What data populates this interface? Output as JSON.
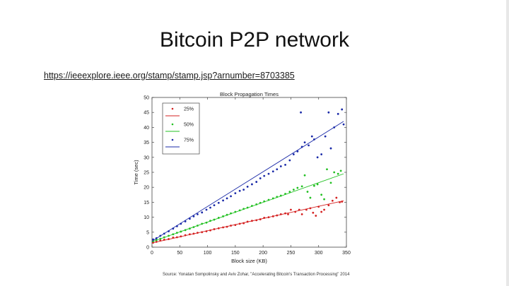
{
  "slide": {
    "title": "Bitcoin P2P network",
    "link": "https://ieeexplore.ieee.org/stamp/stamp.jsp?arnumber=8703385",
    "source": "Source: Yonatan Sompolinsky and Aviv Zohar, \"Accelerating Bitcoin's Transaction Processing\" 2014"
  },
  "chart_data": {
    "type": "scatter",
    "title": "Block Propagation Times",
    "xlabel": "Block size (KB)",
    "ylabel": "Time (sec)",
    "xlim": [
      0,
      350
    ],
    "ylim": [
      0,
      50
    ],
    "xticks": [
      0,
      50,
      100,
      150,
      200,
      250,
      300,
      350
    ],
    "yticks": [
      0,
      5,
      10,
      15,
      20,
      25,
      30,
      35,
      40,
      45,
      50
    ],
    "grid": false,
    "legend_position": "top-left",
    "series": [
      {
        "name": "25%",
        "color": "#d42020",
        "fit": [
          [
            0,
            1.4
          ],
          [
            345,
            15.5
          ]
        ],
        "points": [
          [
            2,
            1.5
          ],
          [
            8,
            1.8
          ],
          [
            15,
            2.2
          ],
          [
            22,
            2.5
          ],
          [
            30,
            2.7
          ],
          [
            38,
            3.2
          ],
          [
            45,
            3.3
          ],
          [
            52,
            3.6
          ],
          [
            60,
            4.0
          ],
          [
            68,
            4.3
          ],
          [
            75,
            4.5
          ],
          [
            82,
            4.8
          ],
          [
            90,
            5.0
          ],
          [
            98,
            5.3
          ],
          [
            105,
            5.6
          ],
          [
            112,
            6.0
          ],
          [
            120,
            6.3
          ],
          [
            128,
            6.6
          ],
          [
            135,
            6.8
          ],
          [
            142,
            7.2
          ],
          [
            150,
            7.4
          ],
          [
            158,
            7.8
          ],
          [
            165,
            8.0
          ],
          [
            172,
            8.5
          ],
          [
            180,
            8.8
          ],
          [
            188,
            9.0
          ],
          [
            195,
            9.3
          ],
          [
            202,
            9.8
          ],
          [
            210,
            10.0
          ],
          [
            218,
            10.3
          ],
          [
            225,
            10.6
          ],
          [
            232,
            11.0
          ],
          [
            240,
            11.3
          ],
          [
            245,
            11.0
          ],
          [
            250,
            12.5
          ],
          [
            258,
            11.8
          ],
          [
            265,
            12.5
          ],
          [
            270,
            11.0
          ],
          [
            278,
            12.5
          ],
          [
            285,
            13.0
          ],
          [
            290,
            11.5
          ],
          [
            295,
            10.5
          ],
          [
            300,
            13.5
          ],
          [
            305,
            11.8
          ],
          [
            310,
            12.5
          ],
          [
            318,
            14.0
          ],
          [
            325,
            15.5
          ],
          [
            332,
            16.5
          ],
          [
            338,
            15.0
          ],
          [
            342,
            15.2
          ]
        ]
      },
      {
        "name": "50%",
        "color": "#22c022",
        "fit": [
          [
            0,
            1.8
          ],
          [
            345,
            24.5
          ]
        ],
        "points": [
          [
            2,
            2.0
          ],
          [
            8,
            2.4
          ],
          [
            15,
            2.8
          ],
          [
            22,
            3.3
          ],
          [
            30,
            3.8
          ],
          [
            38,
            4.3
          ],
          [
            45,
            4.8
          ],
          [
            52,
            5.2
          ],
          [
            60,
            5.7
          ],
          [
            68,
            6.2
          ],
          [
            75,
            6.7
          ],
          [
            82,
            7.2
          ],
          [
            90,
            7.8
          ],
          [
            98,
            8.2
          ],
          [
            105,
            8.8
          ],
          [
            112,
            9.2
          ],
          [
            120,
            9.8
          ],
          [
            128,
            10.3
          ],
          [
            135,
            10.8
          ],
          [
            142,
            11.3
          ],
          [
            150,
            11.8
          ],
          [
            158,
            12.3
          ],
          [
            165,
            12.8
          ],
          [
            172,
            13.2
          ],
          [
            180,
            13.8
          ],
          [
            188,
            14.3
          ],
          [
            195,
            14.8
          ],
          [
            202,
            15.3
          ],
          [
            210,
            15.8
          ],
          [
            218,
            16.3
          ],
          [
            225,
            16.8
          ],
          [
            232,
            17.2
          ],
          [
            240,
            17.8
          ],
          [
            248,
            18.5
          ],
          [
            255,
            19.2
          ],
          [
            262,
            19.8
          ],
          [
            270,
            20.3
          ],
          [
            275,
            24.0
          ],
          [
            280,
            18.5
          ],
          [
            285,
            16.5
          ],
          [
            292,
            20.5
          ],
          [
            298,
            21.0
          ],
          [
            305,
            17.5
          ],
          [
            310,
            16.0
          ],
          [
            315,
            26.0
          ],
          [
            322,
            21.5
          ],
          [
            328,
            25.0
          ],
          [
            335,
            24.5
          ],
          [
            340,
            25.5
          ]
        ]
      },
      {
        "name": "75%",
        "color": "#1a2aa8",
        "fit": [
          [
            0,
            2.0
          ],
          [
            345,
            42.0
          ]
        ],
        "points": [
          [
            2,
            2.6
          ],
          [
            8,
            3.0
          ],
          [
            15,
            3.8
          ],
          [
            22,
            4.5
          ],
          [
            30,
            5.3
          ],
          [
            38,
            6.2
          ],
          [
            45,
            7.0
          ],
          [
            52,
            7.8
          ],
          [
            60,
            8.6
          ],
          [
            68,
            9.5
          ],
          [
            75,
            10.3
          ],
          [
            82,
            11.0
          ],
          [
            90,
            11.6
          ],
          [
            98,
            12.5
          ],
          [
            105,
            13.2
          ],
          [
            112,
            14.0
          ],
          [
            120,
            14.8
          ],
          [
            128,
            15.6
          ],
          [
            135,
            16.3
          ],
          [
            142,
            17.0
          ],
          [
            150,
            18.0
          ],
          [
            158,
            18.8
          ],
          [
            165,
            19.2
          ],
          [
            172,
            20.2
          ],
          [
            180,
            21.0
          ],
          [
            188,
            21.8
          ],
          [
            195,
            23.0
          ],
          [
            202,
            23.8
          ],
          [
            210,
            24.5
          ],
          [
            218,
            25.3
          ],
          [
            225,
            26.0
          ],
          [
            232,
            27.0
          ],
          [
            240,
            27.5
          ],
          [
            248,
            29.0
          ],
          [
            255,
            31.0
          ],
          [
            262,
            32.0
          ],
          [
            268,
            45.0
          ],
          [
            270,
            33.5
          ],
          [
            275,
            35.0
          ],
          [
            282,
            34.0
          ],
          [
            288,
            37.0
          ],
          [
            292,
            36.0
          ],
          [
            298,
            30.0
          ],
          [
            305,
            31.0
          ],
          [
            312,
            37.0
          ],
          [
            318,
            45.0
          ],
          [
            322,
            33.0
          ],
          [
            328,
            40.0
          ],
          [
            335,
            44.5
          ],
          [
            342,
            46.0
          ],
          [
            345,
            41.0
          ]
        ]
      }
    ]
  }
}
